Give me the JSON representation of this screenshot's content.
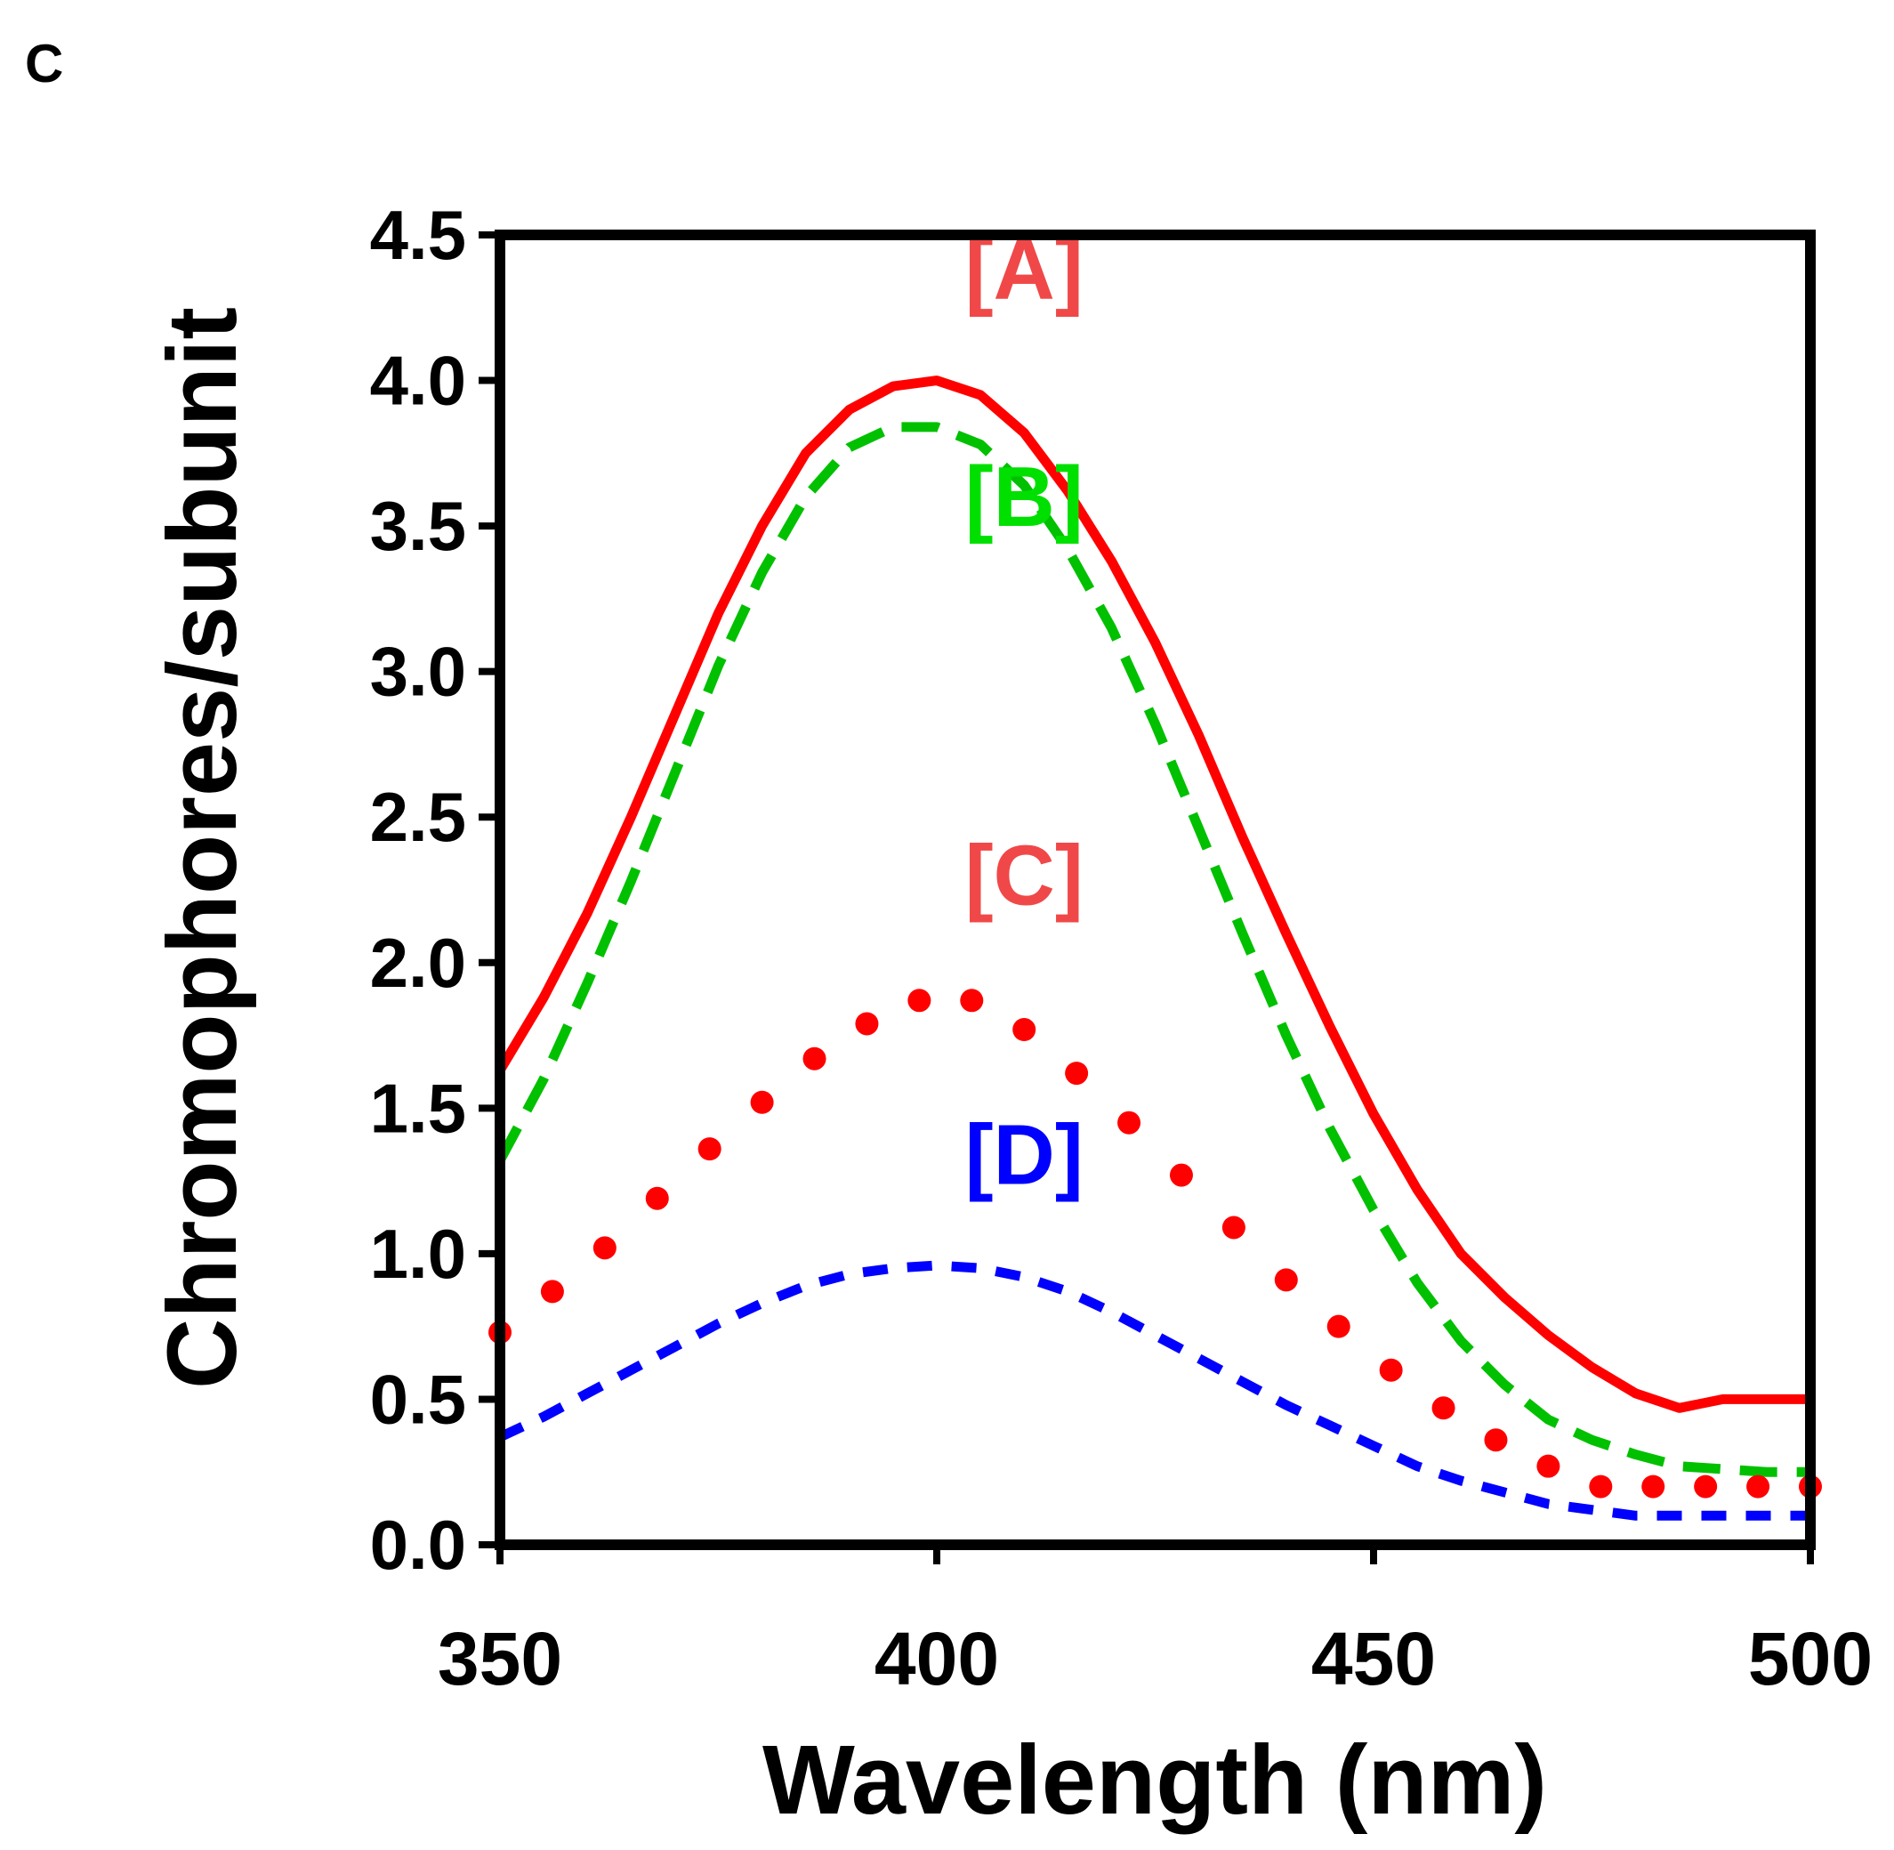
{
  "panel_label": "C",
  "chart_data": {
    "type": "line",
    "title": "",
    "xlabel": "Wavelength (nm)",
    "ylabel": "Chromophores/subunit",
    "xlim": [
      350,
      500
    ],
    "ylim": [
      0,
      4.5
    ],
    "grid": false,
    "xticks": [
      350,
      400,
      450,
      500
    ],
    "yticks": [
      0,
      0.5,
      1,
      1.5,
      2,
      2.5,
      3,
      3.5,
      4,
      4.5
    ],
    "xtick_labels": [
      "350",
      "400",
      "450",
      "500"
    ],
    "ytick_labels": [
      "0.0",
      "0.5",
      "1.0",
      "1.5",
      "2.0",
      "2.5",
      "3.0",
      "3.5",
      "4.0",
      "4.5"
    ],
    "series": [
      {
        "name": "[A]",
        "style": "solid",
        "color": "#ff0000",
        "label_color": "#f04848",
        "label_at": [
          410,
          4.28
        ],
        "x": [
          350,
          355,
          360,
          365,
          370,
          375,
          380,
          385,
          390,
          395,
          400,
          405,
          410,
          415,
          420,
          425,
          430,
          435,
          440,
          445,
          450,
          455,
          460,
          465,
          470,
          475,
          480,
          485,
          490,
          495,
          500
        ],
        "y": [
          1.63,
          1.88,
          2.17,
          2.5,
          2.85,
          3.2,
          3.5,
          3.75,
          3.9,
          3.98,
          4.0,
          3.95,
          3.82,
          3.62,
          3.38,
          3.1,
          2.78,
          2.43,
          2.1,
          1.78,
          1.48,
          1.22,
          1.0,
          0.85,
          0.72,
          0.61,
          0.52,
          0.47,
          0.5,
          0.5,
          0.5
        ]
      },
      {
        "name": "[B]",
        "style": "dashed",
        "color": "#00c000",
        "label_color": "#00e000",
        "label_at": [
          410,
          3.5
        ],
        "x": [
          350,
          355,
          360,
          365,
          370,
          375,
          380,
          385,
          390,
          395,
          400,
          405,
          410,
          415,
          420,
          425,
          430,
          435,
          440,
          445,
          450,
          455,
          460,
          465,
          470,
          475,
          480,
          485,
          490,
          495,
          500
        ],
        "y": [
          1.32,
          1.6,
          1.93,
          2.28,
          2.65,
          3.02,
          3.34,
          3.6,
          3.77,
          3.84,
          3.84,
          3.78,
          3.64,
          3.42,
          3.15,
          2.82,
          2.46,
          2.1,
          1.75,
          1.43,
          1.15,
          0.9,
          0.7,
          0.55,
          0.43,
          0.36,
          0.31,
          0.27,
          0.26,
          0.25,
          0.25
        ]
      },
      {
        "name": "[C]",
        "style": "dotted",
        "color": "#ff0000",
        "label_color": "#f04848",
        "label_at": [
          410,
          2.2
        ],
        "x": [
          350,
          356,
          362,
          368,
          374,
          380,
          386,
          392,
          398,
          404,
          410,
          416,
          422,
          428,
          434,
          440,
          446,
          452,
          458,
          464,
          470,
          476,
          482,
          488,
          494,
          500
        ],
        "y": [
          0.73,
          0.87,
          1.02,
          1.19,
          1.36,
          1.52,
          1.67,
          1.79,
          1.87,
          1.87,
          1.77,
          1.62,
          1.45,
          1.27,
          1.09,
          0.91,
          0.75,
          0.6,
          0.47,
          0.36,
          0.27,
          0.2,
          0.2,
          0.2,
          0.2,
          0.2
        ]
      },
      {
        "name": "[D]",
        "style": "short-dashed",
        "color": "#0000ff",
        "label_color": "#0000ff",
        "label_at": [
          410,
          1.24
        ],
        "x": [
          350,
          355,
          360,
          365,
          370,
          375,
          380,
          385,
          390,
          395,
          400,
          405,
          410,
          415,
          420,
          425,
          430,
          435,
          440,
          445,
          450,
          455,
          460,
          465,
          470,
          475,
          480,
          485,
          490,
          495,
          500
        ],
        "y": [
          0.37,
          0.44,
          0.52,
          0.6,
          0.68,
          0.76,
          0.83,
          0.89,
          0.93,
          0.95,
          0.96,
          0.95,
          0.92,
          0.87,
          0.8,
          0.72,
          0.64,
          0.56,
          0.48,
          0.41,
          0.34,
          0.27,
          0.22,
          0.18,
          0.14,
          0.12,
          0.1,
          0.1,
          0.1,
          0.1,
          0.1
        ]
      }
    ]
  }
}
